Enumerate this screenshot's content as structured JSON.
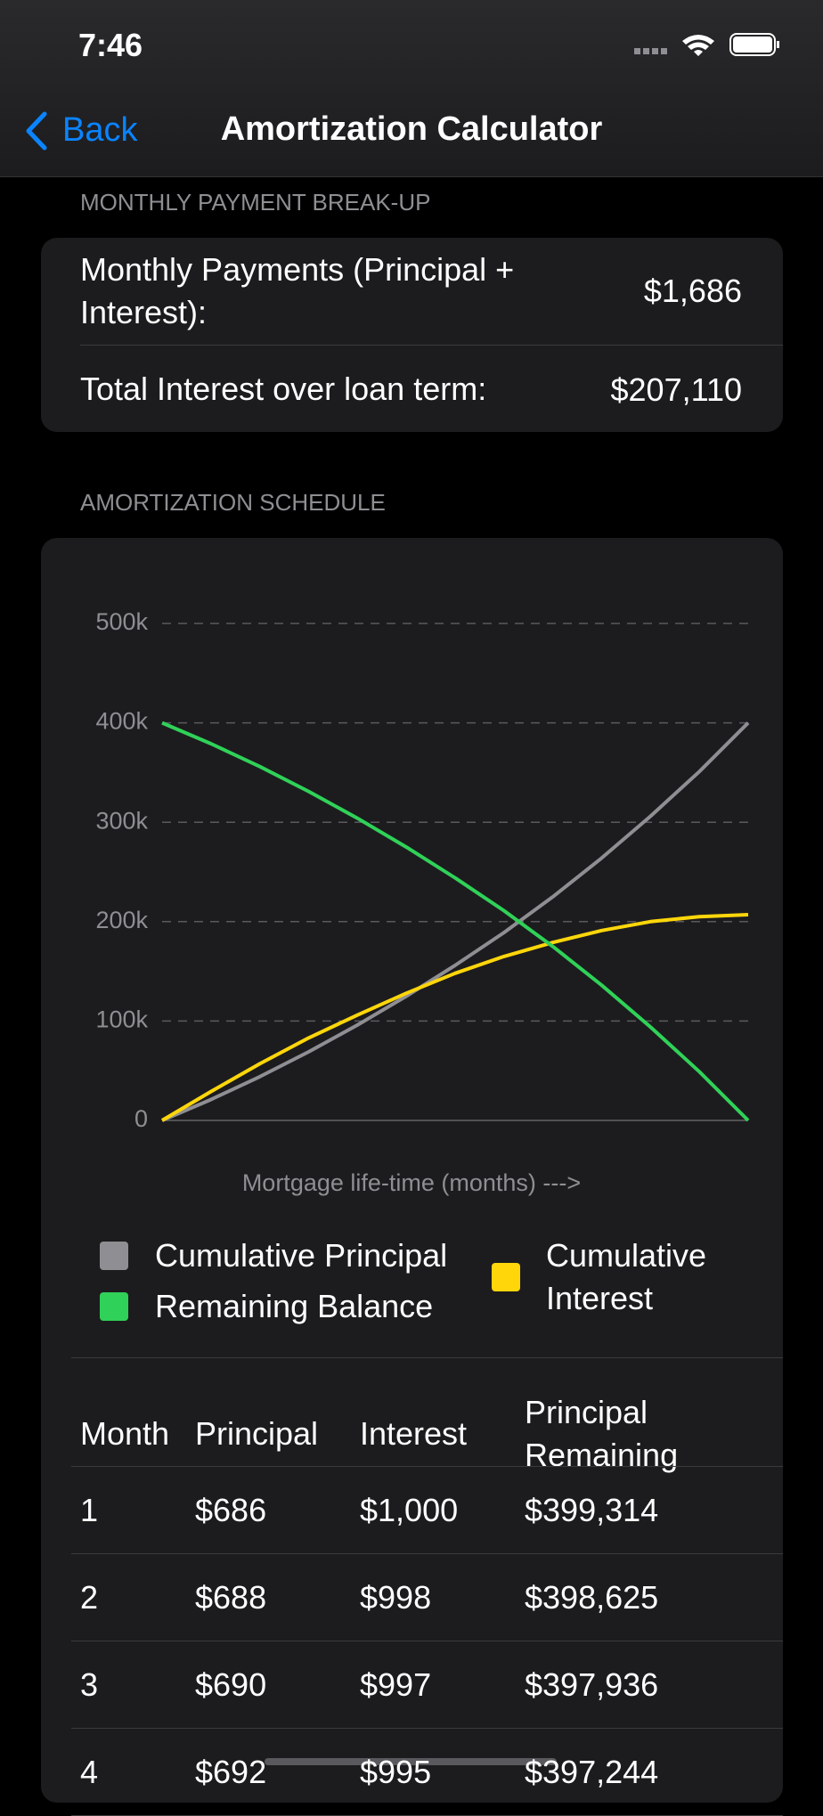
{
  "status_bar": {
    "time": "7:46"
  },
  "nav": {
    "back": "Back",
    "title": "Amortization Calculator"
  },
  "payment_section": {
    "header": "MONTHLY PAYMENT BREAK-UP",
    "rows": [
      {
        "label": "Monthly Payments (Principal + Interest):",
        "value": "$1,686"
      },
      {
        "label": "Total Interest over loan term:",
        "value": "$207,110"
      }
    ]
  },
  "schedule_section": {
    "header": "AMORTIZATION SCHEDULE"
  },
  "chart_data": {
    "type": "line",
    "xlabel": "Mortgage life-time (months) --->",
    "x": [
      0,
      30,
      60,
      90,
      120,
      150,
      180,
      210,
      240,
      270,
      300,
      330,
      360
    ],
    "xlim": [
      0,
      360
    ],
    "ylim": [
      0,
      500000
    ],
    "yticks": [
      0,
      {
        "value": 100000,
        "label": "100k"
      },
      {
        "value": 200000,
        "label": "200k"
      },
      {
        "value": 300000,
        "label": "300k"
      },
      {
        "value": 400000,
        "label": "400k"
      },
      {
        "value": 500000,
        "label": "500k"
      }
    ],
    "grid": true,
    "series": [
      {
        "name": "Cumulative Principal",
        "color": "#8e8e93",
        "values": [
          0,
          21000,
          44000,
          69000,
          96000,
          125000,
          156000,
          189000,
          225000,
          264000,
          306000,
          351000,
          400000
        ]
      },
      {
        "name": "Cumulative Interest",
        "color": "#ffd60a",
        "values": [
          0,
          29000,
          57000,
          83000,
          106000,
          128000,
          148000,
          165000,
          179000,
          191000,
          200000,
          205000,
          207000
        ]
      },
      {
        "name": "Remaining Balance",
        "color": "#30d158",
        "values": [
          400000,
          379000,
          356000,
          331000,
          304000,
          275000,
          244000,
          211000,
          175000,
          136000,
          94000,
          49000,
          0
        ]
      }
    ]
  },
  "table": {
    "columns": [
      "Month",
      "Principal",
      "Interest",
      "Principal Remaining"
    ],
    "rows": [
      [
        "1",
        "$686",
        "$1,000",
        "$399,314"
      ],
      [
        "2",
        "$688",
        "$998",
        "$398,625"
      ],
      [
        "3",
        "$690",
        "$997",
        "$397,936"
      ],
      [
        "4",
        "$692",
        "$995",
        "$397,244"
      ]
    ]
  }
}
